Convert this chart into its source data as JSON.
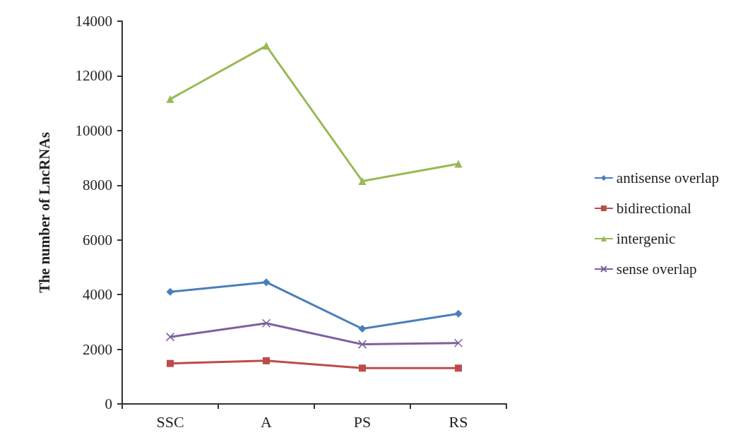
{
  "chart_data": {
    "type": "line",
    "ylabel": "The number of LncRNAs",
    "categories": [
      "SSC",
      "A",
      "PS",
      "RS"
    ],
    "series": [
      {
        "name": "antisense overlap",
        "color": "#4a7ebb",
        "marker": "diamond",
        "values": [
          4100,
          4450,
          2750,
          3300
        ]
      },
      {
        "name": "bidirectional",
        "color": "#be4b48",
        "marker": "square",
        "values": [
          1480,
          1580,
          1310,
          1310
        ]
      },
      {
        "name": "intergenic",
        "color": "#98b954",
        "marker": "triangle",
        "values": [
          11150,
          13100,
          8150,
          8780
        ]
      },
      {
        "name": "sense overlap",
        "color": "#7d60a0",
        "marker": "cross",
        "values": [
          2450,
          2950,
          2180,
          2230
        ]
      }
    ],
    "ylim": [
      0,
      14000
    ],
    "yticks": [
      0,
      2000,
      4000,
      6000,
      8000,
      10000,
      12000,
      14000
    ],
    "grid": false,
    "legend": "right"
  }
}
